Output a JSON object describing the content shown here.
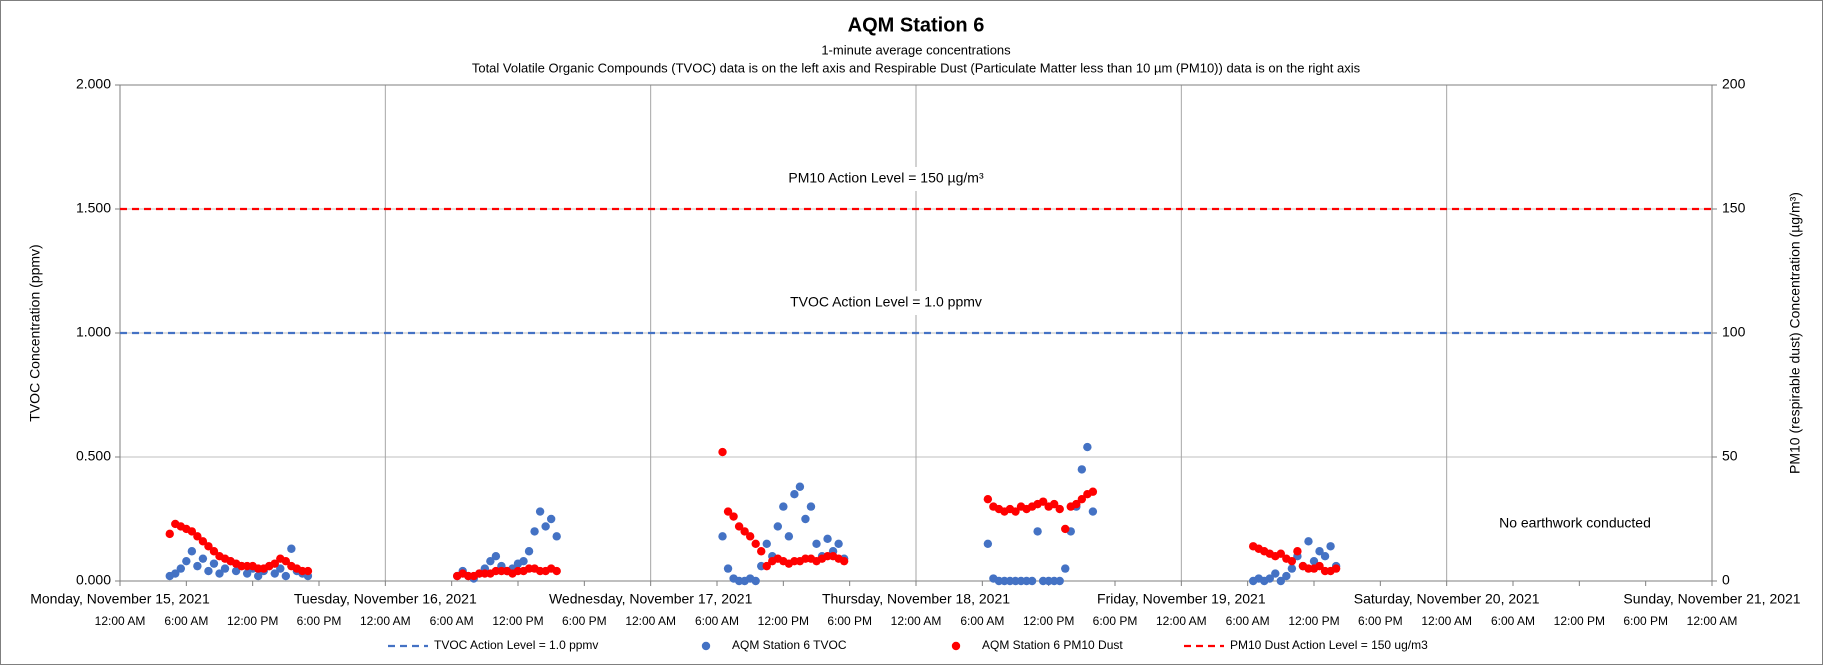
{
  "chart_data": {
    "type": "scatter",
    "title": "AQM Station 6",
    "subtitle": "1-minute average concentrations",
    "subtitle2": "Total Volatile Organic Compounds (TVOC) data is on the left axis and Respirable Dust (Particulate Matter less than 10 µm (PM10)) data is on the right axis",
    "y_label": "TVOC Concentration (ppmv)",
    "y2_label": "PM10 (respirable dust) Concentration (µg/m³)",
    "annotations": [
      "PM10 Action Level = 150 µg/m³",
      "TVOC Action Level = 1.0 ppmv",
      "No earthwork conducted"
    ],
    "xlim": [
      "2021-11-15T00:00",
      "2021-11-21T00:00"
    ],
    "xticks": [
      {
        "value": "2021-11-15T00:00",
        "label": "12:00 AM"
      },
      {
        "value": "2021-11-15T06:00",
        "label": "6:00 AM"
      },
      {
        "value": "2021-11-15T12:00",
        "label": "12:00 PM"
      },
      {
        "value": "2021-11-15T18:00",
        "label": "6:00 PM"
      },
      {
        "value": "2021-11-16T00:00",
        "label": "12:00 AM"
      },
      {
        "value": "2021-11-16T06:00",
        "label": "6:00 AM"
      },
      {
        "value": "2021-11-16T12:00",
        "label": "12:00 PM"
      },
      {
        "value": "2021-11-16T18:00",
        "label": "6:00 PM"
      },
      {
        "value": "2021-11-17T00:00",
        "label": "12:00 AM"
      },
      {
        "value": "2021-11-17T06:00",
        "label": "6:00 AM"
      },
      {
        "value": "2021-11-17T12:00",
        "label": "12:00 PM"
      },
      {
        "value": "2021-11-17T18:00",
        "label": "6:00 PM"
      },
      {
        "value": "2021-11-18T00:00",
        "label": "12:00 AM"
      },
      {
        "value": "2021-11-18T06:00",
        "label": "6:00 AM"
      },
      {
        "value": "2021-11-18T12:00",
        "label": "12:00 PM"
      },
      {
        "value": "2021-11-18T18:00",
        "label": "6:00 PM"
      },
      {
        "value": "2021-11-19T00:00",
        "label": "12:00 AM"
      },
      {
        "value": "2021-11-19T06:00",
        "label": "6:00 AM"
      },
      {
        "value": "2021-11-19T12:00",
        "label": "12:00 PM"
      },
      {
        "value": "2021-11-19T18:00",
        "label": "6:00 PM"
      },
      {
        "value": "2021-11-20T00:00",
        "label": "12:00 AM"
      },
      {
        "value": "2021-11-20T06:00",
        "label": "6:00 AM"
      },
      {
        "value": "2021-11-20T12:00",
        "label": "12:00 PM"
      },
      {
        "value": "2021-11-20T18:00",
        "label": "6:00 PM"
      },
      {
        "value": "2021-11-21T00:00",
        "label": "12:00 AM"
      }
    ],
    "xticks_days": [
      {
        "value": "2021-11-15T00:00",
        "label": "Monday, November 15, 2021"
      },
      {
        "value": "2021-11-16T00:00",
        "label": "Tuesday, November 16, 2021"
      },
      {
        "value": "2021-11-17T00:00",
        "label": "Wednesday, November 17, 2021"
      },
      {
        "value": "2021-11-18T00:00",
        "label": "Thursday, November 18, 2021"
      },
      {
        "value": "2021-11-19T00:00",
        "label": "Friday, November 19, 2021"
      },
      {
        "value": "2021-11-20T00:00",
        "label": "Saturday, November 20, 2021"
      },
      {
        "value": "2021-11-21T00:00",
        "label": "Sunday, November 21, 2021"
      }
    ],
    "ylim": [
      0,
      2
    ],
    "yticks": [
      {
        "value": 0,
        "label": "0.000"
      },
      {
        "value": 0.5,
        "label": "0.500"
      },
      {
        "value": 1,
        "label": "1.000"
      },
      {
        "value": 1.5,
        "label": "1.500"
      },
      {
        "value": 2,
        "label": "2.000"
      }
    ],
    "y2lim": [
      0,
      200
    ],
    "y2ticks": [
      0,
      50,
      100,
      150,
      200
    ],
    "grid": true,
    "x": [
      "2021-11-15T04:30",
      "2021-11-15T05:00",
      "2021-11-15T05:30",
      "2021-11-15T06:00",
      "2021-11-15T06:30",
      "2021-11-15T07:00",
      "2021-11-15T07:30",
      "2021-11-15T08:00",
      "2021-11-15T08:30",
      "2021-11-15T09:00",
      "2021-11-15T09:30",
      "2021-11-15T10:00",
      "2021-11-15T10:30",
      "2021-11-15T11:00",
      "2021-11-15T11:30",
      "2021-11-15T12:00",
      "2021-11-15T12:30",
      "2021-11-15T13:00",
      "2021-11-15T13:30",
      "2021-11-15T14:00",
      "2021-11-15T14:30",
      "2021-11-15T15:00",
      "2021-11-15T15:30",
      "2021-11-15T16:00",
      "2021-11-15T16:30",
      "2021-11-15T17:00",
      "2021-11-16T06:30",
      "2021-11-16T07:00",
      "2021-11-16T07:30",
      "2021-11-16T08:00",
      "2021-11-16T08:30",
      "2021-11-16T09:00",
      "2021-11-16T09:30",
      "2021-11-16T10:00",
      "2021-11-16T10:30",
      "2021-11-16T11:00",
      "2021-11-16T11:30",
      "2021-11-16T12:00",
      "2021-11-16T12:30",
      "2021-11-16T13:00",
      "2021-11-16T13:30",
      "2021-11-16T14:00",
      "2021-11-16T14:30",
      "2021-11-16T15:00",
      "2021-11-16T15:30",
      "2021-11-17T06:30",
      "2021-11-17T07:00",
      "2021-11-17T07:30",
      "2021-11-17T08:00",
      "2021-11-17T08:30",
      "2021-11-17T09:00",
      "2021-11-17T09:30",
      "2021-11-17T10:00",
      "2021-11-17T10:30",
      "2021-11-17T11:00",
      "2021-11-17T11:30",
      "2021-11-17T12:00",
      "2021-11-17T12:30",
      "2021-11-17T13:00",
      "2021-11-17T13:30",
      "2021-11-17T14:00",
      "2021-11-17T14:30",
      "2021-11-17T15:00",
      "2021-11-17T15:30",
      "2021-11-17T16:00",
      "2021-11-17T16:30",
      "2021-11-17T17:00",
      "2021-11-17T17:30",
      "2021-11-18T06:30",
      "2021-11-18T07:00",
      "2021-11-18T07:30",
      "2021-11-18T08:00",
      "2021-11-18T08:30",
      "2021-11-18T09:00",
      "2021-11-18T09:30",
      "2021-11-18T10:00",
      "2021-11-18T10:30",
      "2021-11-18T11:00",
      "2021-11-18T11:30",
      "2021-11-18T12:00",
      "2021-11-18T12:30",
      "2021-11-18T13:00",
      "2021-11-18T13:30",
      "2021-11-18T14:00",
      "2021-11-18T14:30",
      "2021-11-18T15:00",
      "2021-11-18T15:30",
      "2021-11-18T16:00",
      "2021-11-19T06:30",
      "2021-11-19T07:00",
      "2021-11-19T07:30",
      "2021-11-19T08:00",
      "2021-11-19T08:30",
      "2021-11-19T09:00",
      "2021-11-19T09:30",
      "2021-11-19T10:00",
      "2021-11-19T10:30",
      "2021-11-19T11:00",
      "2021-11-19T11:30",
      "2021-11-19T12:00",
      "2021-11-19T12:30",
      "2021-11-19T13:00",
      "2021-11-19T13:30",
      "2021-11-19T14:00"
    ],
    "series": [
      {
        "name": "TVOC Action Level = 1.0 ppmv",
        "kind": "hline",
        "axis": "y",
        "color": "#4472c4",
        "value": 1
      },
      {
        "name": "AQM Station 6 TVOC",
        "kind": "scatter",
        "axis": "y",
        "color": "#4472c4",
        "values": [
          0.02,
          0.03,
          0.05,
          0.08,
          0.12,
          0.06,
          0.09,
          0.04,
          0.07,
          0.03,
          0.05,
          0.08,
          0.04,
          0.06,
          0.03,
          0.05,
          0.02,
          0.04,
          0.06,
          0.03,
          0.05,
          0.02,
          0.13,
          0.04,
          0.03,
          0.02,
          0.02,
          0.04,
          0.02,
          0.01,
          0.03,
          0.05,
          0.08,
          0.1,
          0.06,
          0.04,
          0.05,
          0.07,
          0.08,
          0.12,
          0.2,
          0.28,
          0.22,
          0.25,
          0.18,
          0.18,
          0.05,
          0.01,
          0,
          0,
          0.01,
          0,
          0.06,
          0.15,
          0.1,
          0.22,
          0.3,
          0.18,
          0.35,
          0.38,
          0.25,
          0.3,
          0.15,
          0.1,
          0.17,
          0.12,
          0.15,
          0.09,
          0.15,
          0.01,
          0,
          0,
          0,
          0,
          0,
          0,
          0,
          0.2,
          0,
          0,
          0,
          0,
          0.05,
          0.2,
          0.3,
          0.45,
          0.54,
          0.28,
          0,
          0.01,
          0,
          0.01,
          0.03,
          0,
          0.02,
          0.05,
          0.1,
          0.06,
          0.16,
          0.08,
          0.12,
          0.1,
          0.14,
          0.06
        ]
      },
      {
        "name": "AQM Station 6 PM10 Dust",
        "kind": "scatter",
        "axis": "y2",
        "color": "#ff0000",
        "values": [
          19,
          23,
          22,
          21,
          20,
          18,
          16,
          14,
          12,
          10,
          9,
          8,
          7,
          6,
          6,
          6,
          5,
          5,
          6,
          7,
          9,
          8,
          6,
          5,
          4,
          4,
          2,
          3,
          2,
          2,
          3,
          3,
          3,
          4,
          4,
          4,
          3,
          4,
          4,
          5,
          5,
          4,
          4,
          5,
          4,
          52,
          28,
          26,
          22,
          20,
          18,
          15,
          12,
          6,
          8,
          9,
          8,
          7,
          8,
          8,
          9,
          9,
          8,
          9,
          10,
          10,
          9,
          8,
          33,
          30,
          29,
          28,
          29,
          28,
          30,
          29,
          30,
          31,
          32,
          30,
          31,
          29,
          21,
          30,
          31,
          33,
          35,
          36,
          14,
          13,
          12,
          11,
          10,
          11,
          9,
          8,
          12,
          6,
          5,
          5,
          6,
          4,
          4,
          5
        ]
      },
      {
        "name": "PM10 Dust Action Level = 150 ug/m3",
        "kind": "hline",
        "axis": "y2",
        "color": "#ff0000",
        "value": 150
      }
    ]
  }
}
